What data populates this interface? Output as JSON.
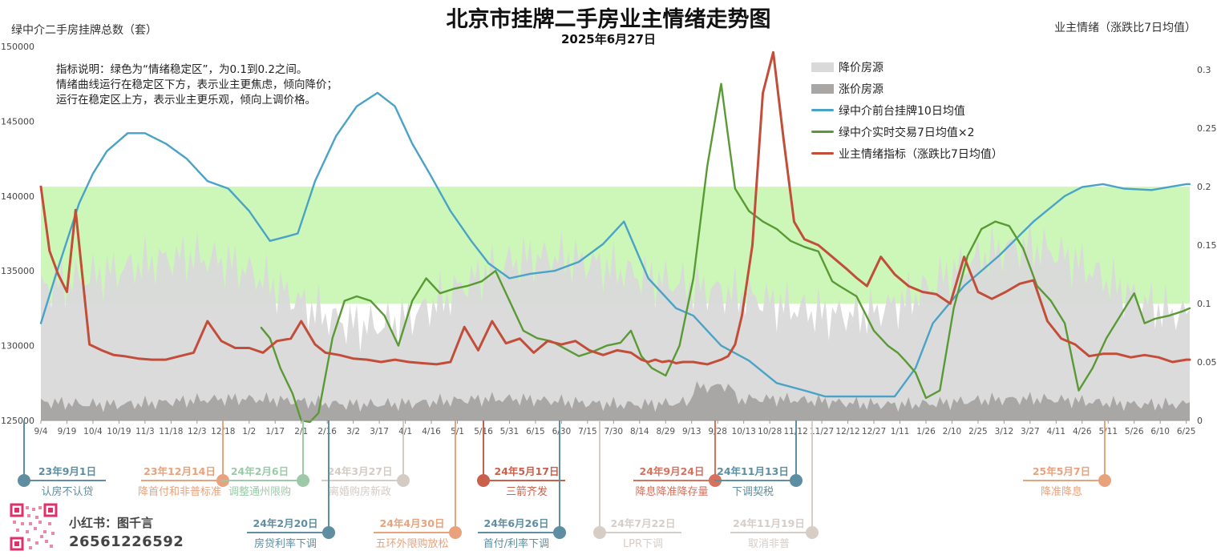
{
  "title": "北京市挂牌二手房业主情绪走势图",
  "subtitle": "2025年6月27日",
  "left_axis_title": "绿中介二手房挂牌总数（套）",
  "right_axis_title": "业主情绪（涨跌比7日均值）",
  "note_lines": [
    "指标说明：绿色为“情绪稳定区”，为0.1到0.2之间。",
    "情绪曲线运行在稳定区下方，表示业主更焦虑，倾向降价；",
    "运行在稳定区上方，表示业主更乐观，倾向上调价格。"
  ],
  "legend": [
    {
      "label": "降价房源",
      "kind": "fill",
      "color": "#d9d9d9"
    },
    {
      "label": "涨价房源",
      "kind": "fill",
      "color": "#a9a6a6"
    },
    {
      "label": "绿中介前台挂牌10日均值",
      "kind": "line",
      "color": "#4aa3c7"
    },
    {
      "label": "绿中介实时交易7日均值×2",
      "kind": "line",
      "color": "#5a9a35"
    },
    {
      "label": "业主情绪指标（涨跌比7日均值）",
      "kind": "line",
      "color": "#c24e3a"
    }
  ],
  "brand": {
    "name": "小红书：图千言",
    "id": "26561226592"
  },
  "colors": {
    "stable_zone": "#ccf7b8",
    "down_fill": "#d9d9d9",
    "up_fill": "#a9a6a6",
    "listings": "#4aa3c7",
    "trades": "#5a9a35",
    "sentiment": "#c24e3a"
  },
  "chart_data": {
    "type": "line",
    "x_tick_labels": [
      "9/4",
      "9/19",
      "10/4",
      "10/19",
      "11/3",
      "11/18",
      "12/3",
      "12/18",
      "1/2",
      "1/17",
      "2/1",
      "2/16",
      "3/2",
      "3/17",
      "4/1",
      "4/16",
      "5/1",
      "5/16",
      "5/31",
      "6/15",
      "6/30",
      "7/15",
      "7/30",
      "8/14",
      "8/29",
      "9/13",
      "9/28",
      "10/13",
      "10/28",
      "11/12",
      "11/27",
      "12/12",
      "12/27",
      "1/11",
      "1/26",
      "2/10",
      "2/25",
      "3/12",
      "3/27",
      "4/11",
      "4/26",
      "5/11",
      "5/26",
      "6/10",
      "6/25"
    ],
    "x_range": [
      "2023-09-04",
      "2025-06-27"
    ],
    "left_axis": {
      "ticks": [
        125000,
        130000,
        135000,
        140000,
        145000,
        150000
      ],
      "range": [
        125000,
        150000
      ]
    },
    "right_axis": {
      "ticks": [
        0,
        0.05,
        0.1,
        0.15,
        0.2,
        0.25,
        0.3
      ],
      "range": [
        0,
        0.32
      ]
    },
    "stable_zone": [
      0.1,
      0.2
    ],
    "series": [
      {
        "name": "绿中介前台挂牌10日均值",
        "axis": "left",
        "x": [
          0,
          8,
          15,
          22,
          30,
          38,
          50,
          60,
          72,
          84,
          96,
          108,
          120,
          132,
          142,
          148,
          158,
          170,
          182,
          194,
          204,
          214,
          224,
          236,
          248,
          258,
          270,
          282,
          296,
          310,
          324,
          336,
          350,
          366,
          376,
          392,
          408,
          424,
          440,
          452,
          460,
          478,
          492,
          504,
          514,
          532,
          552,
          572,
          590,
          600,
          612,
          624,
          640,
          650,
          660,
          662
        ],
        "y": [
          131500,
          134500,
          137000,
          139500,
          141500,
          143000,
          144200,
          144200,
          143500,
          142500,
          141000,
          140500,
          139000,
          137000,
          137300,
          137500,
          141000,
          144000,
          146000,
          146900,
          146000,
          143500,
          141500,
          139000,
          137000,
          135500,
          134500,
          134800,
          135000,
          135600,
          136800,
          138300,
          134500,
          132500,
          132000,
          130000,
          129000,
          127500,
          127000,
          126600,
          126600,
          126600,
          126600,
          128500,
          131500,
          134000,
          136000,
          138300,
          140000,
          140600,
          140800,
          140500,
          140400,
          140600,
          140800,
          140800
        ]
      },
      {
        "name": "绿中介实时交易7日均值×2",
        "axis": "left",
        "x": [
          127,
          132,
          138,
          145,
          150,
          155,
          160,
          168,
          175,
          182,
          190,
          198,
          206,
          214,
          222,
          230,
          238,
          246,
          254,
          262,
          270,
          278,
          286,
          294,
          302,
          310,
          318,
          326,
          334,
          340,
          346,
          352,
          360,
          368,
          376,
          384,
          392,
          400,
          408,
          416,
          424,
          432,
          440,
          448,
          456,
          460,
          470,
          480,
          488,
          494,
          498,
          504,
          510,
          518,
          526,
          534,
          542,
          550,
          558,
          566,
          574,
          582,
          590,
          598,
          606,
          614,
          622,
          630,
          636,
          642,
          650,
          658,
          662
        ],
        "y": [
          131200,
          130500,
          128500,
          126800,
          125000,
          124500,
          125500,
          130500,
          133000,
          133300,
          133000,
          132000,
          130000,
          133000,
          134500,
          133500,
          133800,
          134000,
          134300,
          135000,
          133000,
          131000,
          130500,
          130300,
          129800,
          129300,
          129600,
          130000,
          130200,
          131000,
          129300,
          128500,
          128000,
          130000,
          134500,
          142000,
          147500,
          140500,
          139000,
          138300,
          137800,
          137000,
          136600,
          136300,
          134300,
          134000,
          133300,
          131000,
          130000,
          129500,
          129000,
          128200,
          126500,
          127000,
          132500,
          136000,
          137800,
          138300,
          138000,
          136500,
          134000,
          133000,
          131500,
          127000,
          128500,
          130500,
          132000,
          133500,
          131500,
          131800,
          132000,
          132300,
          132500
        ]
      },
      {
        "name": "业主情绪指标（涨跌比7日均值）",
        "axis": "right",
        "x": [
          0,
          5,
          10,
          15,
          20,
          28,
          35,
          42,
          48,
          56,
          64,
          72,
          80,
          88,
          96,
          104,
          112,
          120,
          128,
          136,
          144,
          150,
          158,
          164,
          172,
          180,
          188,
          196,
          204,
          212,
          220,
          228,
          236,
          244,
          252,
          260,
          268,
          276,
          284,
          292,
          300,
          308,
          316,
          324,
          332,
          340,
          346,
          350,
          354,
          358,
          362,
          366,
          370,
          376,
          380,
          384,
          388,
          392,
          396,
          400,
          404,
          410,
          416,
          422,
          428,
          434,
          440,
          448,
          456,
          464,
          470,
          476,
          484,
          492,
          500,
          508,
          516,
          524,
          532,
          540,
          548,
          556,
          564,
          572,
          580,
          588,
          596,
          604,
          612,
          620,
          628,
          636,
          644,
          652,
          660,
          662
        ],
        "y": [
          0.2,
          0.145,
          0.125,
          0.11,
          0.18,
          0.065,
          0.06,
          0.056,
          0.055,
          0.053,
          0.052,
          0.052,
          0.055,
          0.058,
          0.085,
          0.068,
          0.062,
          0.062,
          0.058,
          0.068,
          0.07,
          0.085,
          0.065,
          0.058,
          0.056,
          0.053,
          0.052,
          0.05,
          0.052,
          0.05,
          0.049,
          0.048,
          0.05,
          0.08,
          0.06,
          0.085,
          0.066,
          0.07,
          0.058,
          0.068,
          0.065,
          0.068,
          0.06,
          0.056,
          0.06,
          0.058,
          0.052,
          0.05,
          0.052,
          0.05,
          0.051,
          0.049,
          0.05,
          0.05,
          0.049,
          0.048,
          0.05,
          0.052,
          0.055,
          0.065,
          0.09,
          0.15,
          0.28,
          0.315,
          0.24,
          0.17,
          0.155,
          0.15,
          0.14,
          0.13,
          0.122,
          0.115,
          0.14,
          0.125,
          0.115,
          0.11,
          0.108,
          0.1,
          0.14,
          0.11,
          0.104,
          0.11,
          0.117,
          0.12,
          0.085,
          0.07,
          0.065,
          0.055,
          0.057,
          0.057,
          0.054,
          0.056,
          0.054,
          0.05,
          0.052,
          0.052
        ]
      }
    ]
  },
  "events": [
    {
      "date": "23年9月1日",
      "label": "认房不认贷",
      "color": "#5e8ea0"
    },
    {
      "date": "23年12月14日",
      "label": "降首付和非普标准",
      "color": "#e8a27c"
    },
    {
      "date": "24年2月6日",
      "label": "调整通州限购",
      "color": "#9ccaa9"
    },
    {
      "date": "24年3月27日",
      "label": "离婚购房新政",
      "color": "#d4cbc4"
    },
    {
      "date": "24年5月17日",
      "label": "三箭齐发",
      "color": "#c9604b"
    },
    {
      "date": "24年9月24日",
      "label": "降息降准降存量",
      "color": "#d5715d"
    },
    {
      "date": "24年11月13日",
      "label": "下调契税",
      "color": "#5d8ea1"
    },
    {
      "date": "25年5月7日",
      "label": "降准降息",
      "color": "#e8a27c"
    },
    {
      "date": "24年2月20日",
      "label": "房贷利率下调",
      "color": "#5e8ea0"
    },
    {
      "date": "24年4月30日",
      "label": "五环外限购放松",
      "color": "#e8a27c"
    },
    {
      "date": "24年6月26日",
      "label": "首付/利率下调",
      "color": "#5d8ea1"
    },
    {
      "date": "24年7月22日",
      "label": "LPR下调",
      "color": "#d6cdc7"
    },
    {
      "date": "24年11月19日",
      "label": "取消非普",
      "color": "#d6cdc7"
    }
  ]
}
